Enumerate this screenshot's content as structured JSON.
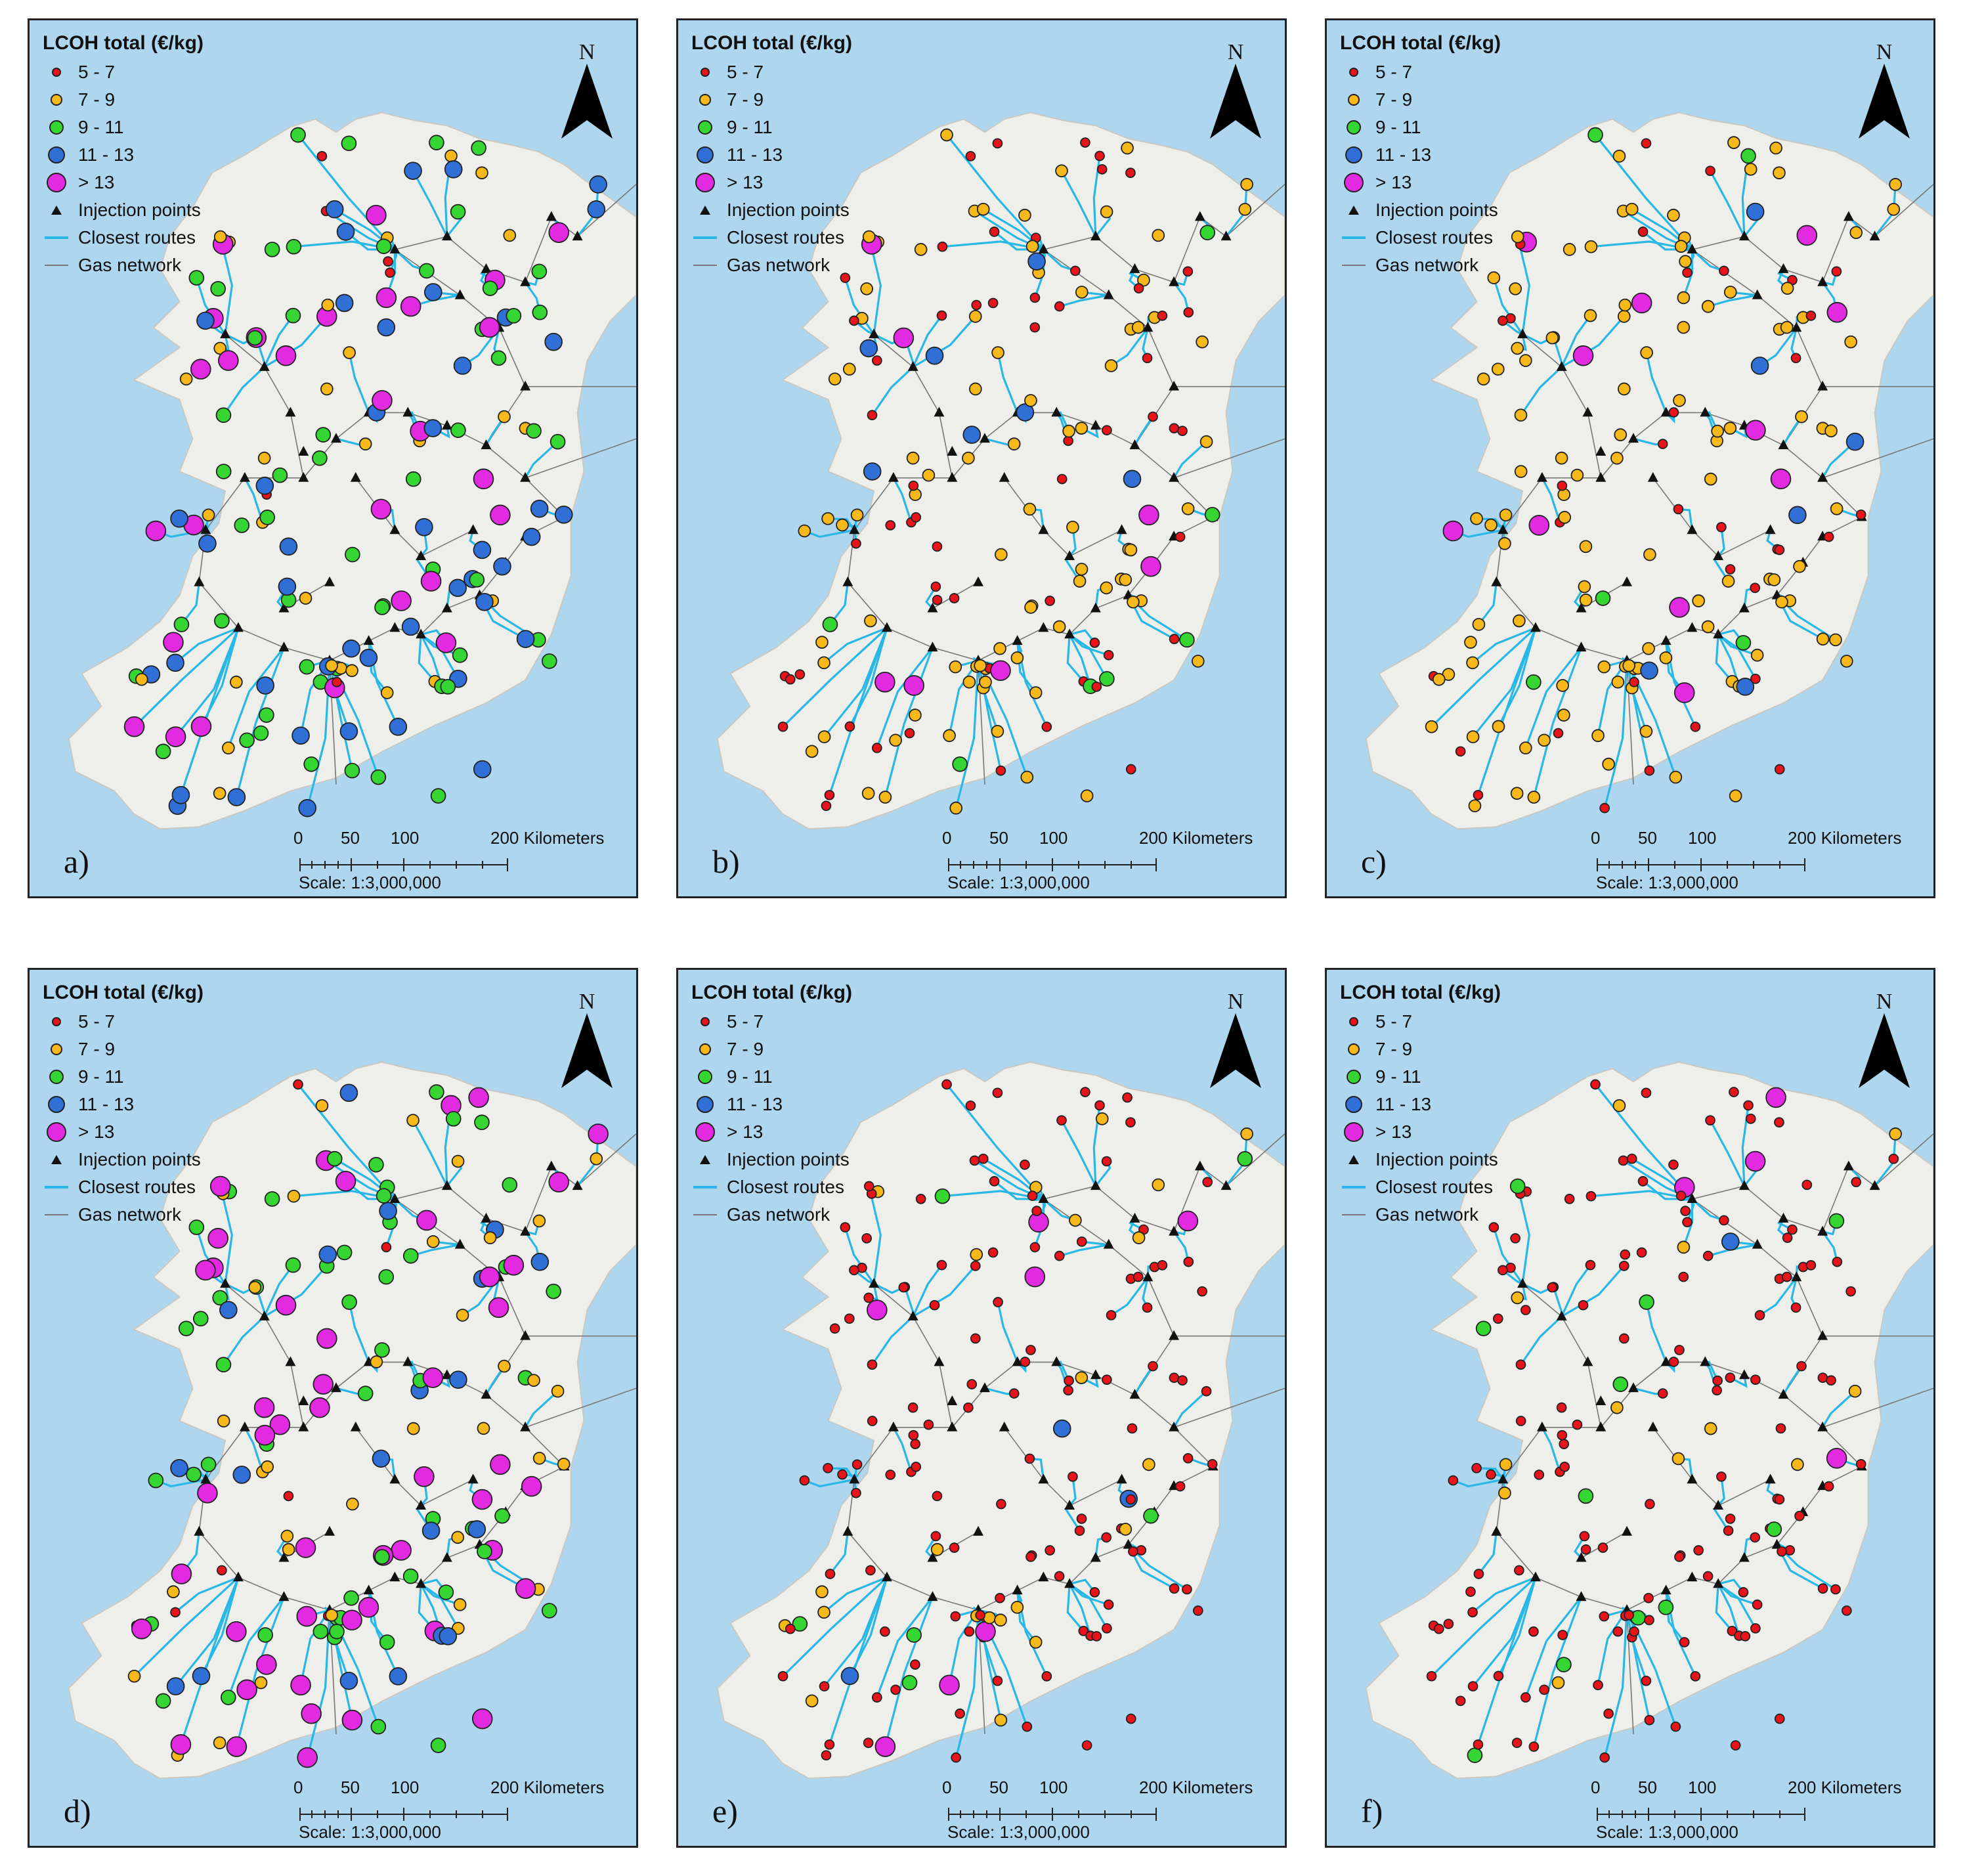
{
  "legend": {
    "title": "LCOH total (€/kg)",
    "classes": [
      {
        "label": "5 - 7",
        "color": "#e8141b"
      },
      {
        "label": "7 - 9",
        "color": "#f6b81b"
      },
      {
        "label": "9 - 11",
        "color": "#35d631"
      },
      {
        "label": "11 - 13",
        "color": "#2f6fd6"
      },
      {
        "label": "> 13",
        "color": "#e22ae0"
      }
    ],
    "injection_points": "Injection points",
    "closest_routes": "Closest routes",
    "gas_network": "Gas network"
  },
  "north_label": "N",
  "scale": {
    "ticks": [
      "0",
      "50",
      "100",
      "200 Kilometers"
    ],
    "text": "Scale: 1:3,000,000"
  },
  "colors": {
    "sea": "#aed6ee",
    "land": "#eeeeea",
    "route": "#29b7e6",
    "gas": "#777777",
    "injection": "#111111"
  },
  "panels": [
    {
      "label": "a)",
      "mix": [
        0.05,
        0.2,
        0.33,
        0.22,
        0.2
      ]
    },
    {
      "label": "b)",
      "mix": [
        0.42,
        0.46,
        0.04,
        0.04,
        0.04
      ]
    },
    {
      "label": "c)",
      "mix": [
        0.22,
        0.66,
        0.05,
        0.03,
        0.04
      ]
    },
    {
      "label": "d)",
      "mix": [
        0.05,
        0.27,
        0.33,
        0.1,
        0.25
      ]
    },
    {
      "label": "e)",
      "mix": [
        0.75,
        0.15,
        0.05,
        0.02,
        0.03
      ]
    },
    {
      "label": "f)",
      "mix": [
        0.78,
        0.12,
        0.05,
        0.02,
        0.03
      ]
    }
  ]
}
